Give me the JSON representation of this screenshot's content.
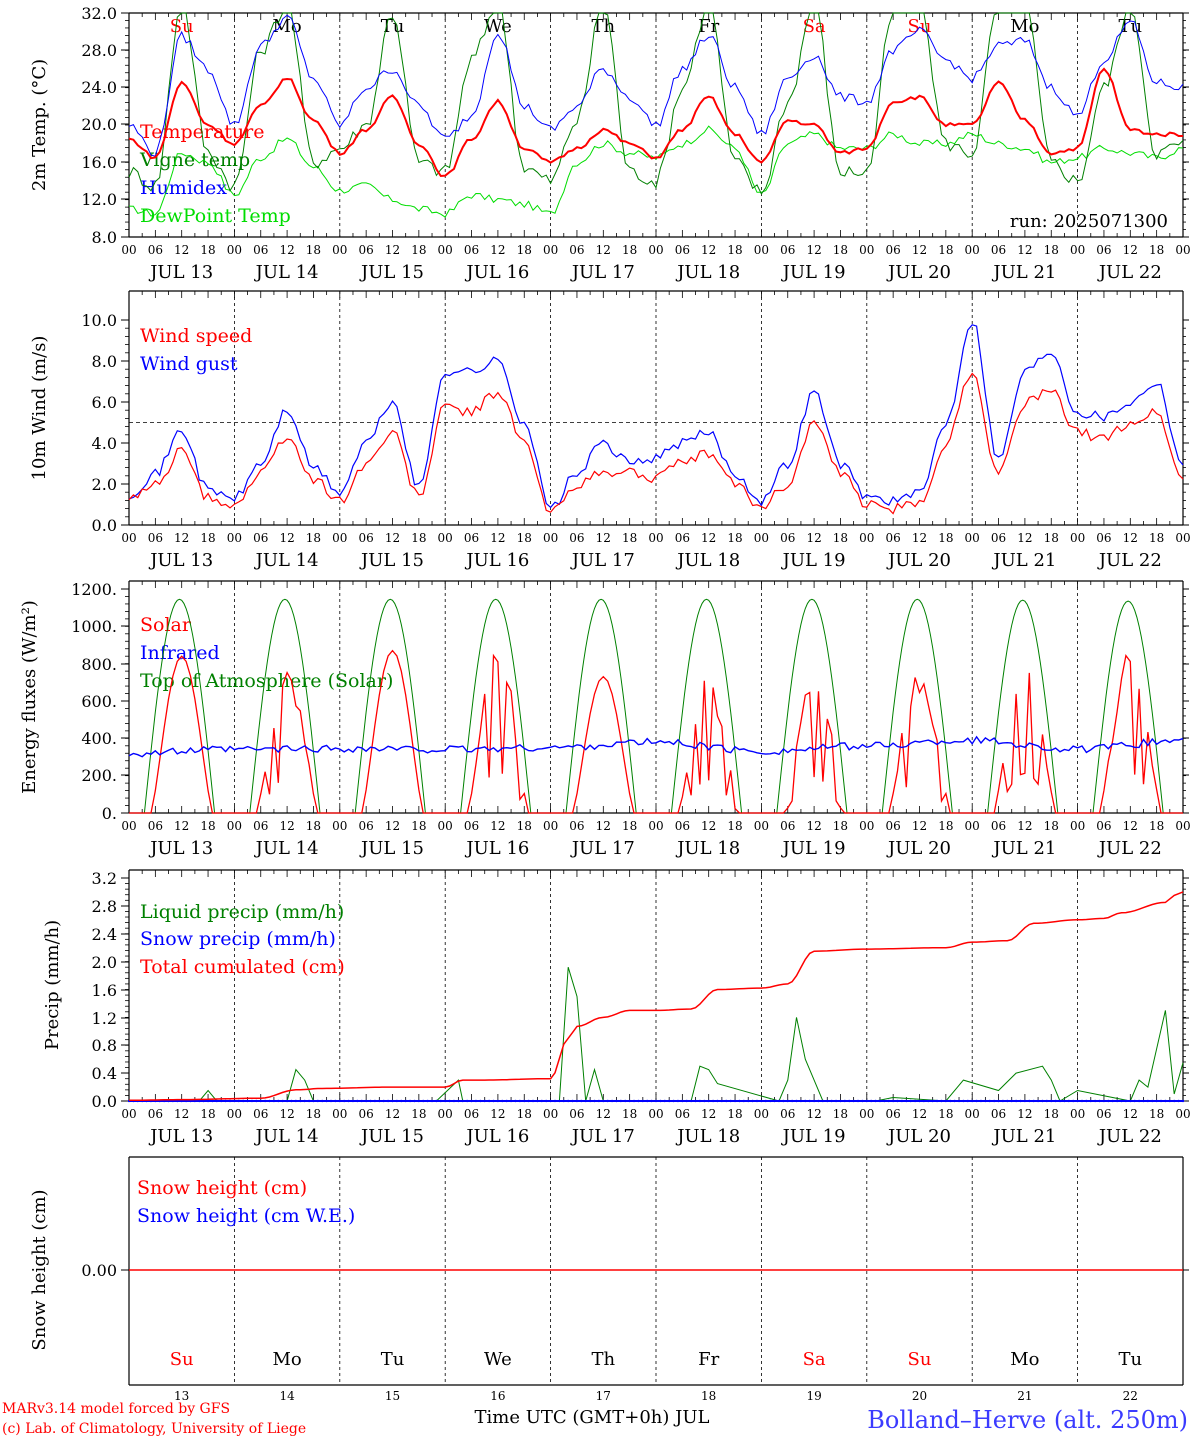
{
  "chart_data": [
    {
      "type": "line",
      "ylabel": "2m Temp. (°C)",
      "ylim": [
        8,
        32
      ],
      "yticks": [
        "32.0",
        "28.0",
        "24.0",
        "20.0",
        "16.0",
        "12.0",
        "8.0"
      ],
      "legend": [
        "Temperature",
        "Vigne temp",
        "Humidex",
        "DewPoint Temp"
      ],
      "annotation": "run: 2025071300",
      "series": [
        {
          "name": "Temperature",
          "color": "#ff0000",
          "x": [
            0,
            6,
            12,
            18,
            24,
            30,
            36,
            42,
            48,
            54,
            60,
            66,
            72,
            78,
            84,
            90,
            96,
            102,
            108,
            114,
            120,
            126,
            132,
            138,
            144,
            150,
            156,
            162,
            168,
            174,
            180,
            186,
            192,
            198,
            204,
            210,
            216,
            222,
            228,
            234,
            240
          ],
          "y": [
            18.5,
            16.5,
            24.5,
            20.0,
            18.0,
            22.0,
            25.0,
            20.5,
            17.0,
            19.5,
            23.0,
            18.0,
            14.5,
            18.5,
            22.5,
            17.5,
            16.0,
            17.5,
            19.5,
            18.0,
            16.5,
            19.5,
            23.0,
            19.0,
            16.0,
            20.5,
            20.0,
            17.0,
            17.5,
            22.5,
            23.0,
            20.0,
            20.0,
            24.5,
            20.5,
            17.0,
            17.5,
            26.0,
            19.5,
            19.0,
            19.0
          ]
        },
        {
          "name": "Vigne temp",
          "color": "#008000",
          "x": [
            0,
            6,
            12,
            18,
            24,
            30,
            36,
            42,
            48,
            54,
            60,
            66,
            72,
            78,
            84,
            90,
            96,
            102,
            108,
            114,
            120,
            126,
            132,
            138,
            144,
            150,
            156,
            162,
            168,
            174,
            180,
            186,
            192,
            198,
            204,
            210,
            216,
            222,
            228,
            234,
            240
          ],
          "y": [
            15.0,
            13.5,
            33.0,
            17.0,
            13.5,
            28.0,
            33.0,
            16.0,
            17.5,
            20.0,
            32.0,
            16.0,
            15.0,
            27.0,
            33.0,
            15.5,
            14.0,
            20.5,
            33.0,
            15.0,
            14.0,
            24.0,
            33.0,
            16.0,
            12.8,
            22.5,
            33.0,
            15.0,
            15.0,
            32.0,
            33.0,
            18.0,
            17.0,
            33.0,
            33.0,
            16.0,
            14.0,
            24.0,
            33.0,
            17.0,
            18.0
          ]
        },
        {
          "name": "Humidex",
          "color": "#0000ff",
          "x": [
            0,
            6,
            12,
            18,
            24,
            30,
            36,
            42,
            48,
            54,
            60,
            66,
            72,
            78,
            84,
            90,
            96,
            102,
            108,
            114,
            120,
            126,
            132,
            138,
            144,
            150,
            156,
            162,
            168,
            174,
            180,
            186,
            192,
            198,
            204,
            210,
            216,
            222,
            228,
            234,
            240
          ],
          "y": [
            20.0,
            17.0,
            29.5,
            26.0,
            20.0,
            28.5,
            31.5,
            25.0,
            20.0,
            24.0,
            26.0,
            22.0,
            18.5,
            21.0,
            30.0,
            22.0,
            19.5,
            22.0,
            26.0,
            23.0,
            20.0,
            26.0,
            29.5,
            24.0,
            19.0,
            25.0,
            27.5,
            23.0,
            22.5,
            28.0,
            30.0,
            27.0,
            25.0,
            28.5,
            29.0,
            24.0,
            21.0,
            27.0,
            31.0,
            24.5,
            24.0
          ]
        },
        {
          "name": "DewPoint Temp",
          "color": "#00dd00",
          "x": [
            0,
            6,
            12,
            18,
            24,
            30,
            36,
            42,
            48,
            54,
            60,
            66,
            72,
            78,
            84,
            90,
            96,
            102,
            108,
            114,
            120,
            126,
            132,
            138,
            144,
            150,
            156,
            162,
            168,
            174,
            180,
            186,
            192,
            198,
            204,
            210,
            216,
            222,
            228,
            234,
            240
          ],
          "y": [
            11.0,
            10.5,
            17.0,
            16.0,
            12.5,
            16.5,
            18.5,
            15.5,
            13.0,
            13.5,
            12.0,
            11.0,
            10.5,
            12.5,
            12.0,
            11.5,
            10.5,
            16.0,
            18.0,
            17.0,
            16.5,
            18.0,
            19.5,
            17.5,
            12.5,
            18.0,
            19.0,
            17.5,
            17.5,
            19.0,
            18.0,
            18.0,
            19.0,
            18.0,
            17.5,
            16.0,
            16.5,
            17.5,
            17.0,
            16.5,
            17.5
          ]
        }
      ]
    },
    {
      "type": "line",
      "ylabel": "10m Wind (m/s)",
      "ylim": [
        0,
        11
      ],
      "yticks": [
        "10.0",
        "8.0",
        "6.0",
        "4.0",
        "2.0",
        "0.0"
      ],
      "legend": [
        "Wind speed",
        "Wind gust"
      ],
      "reference_line": 5.0,
      "series": [
        {
          "name": "Wind speed",
          "color": "#ff0000",
          "x": [
            0,
            6,
            12,
            18,
            24,
            30,
            36,
            42,
            48,
            54,
            60,
            66,
            72,
            78,
            84,
            90,
            96,
            102,
            108,
            114,
            120,
            126,
            132,
            138,
            144,
            150,
            156,
            162,
            168,
            174,
            180,
            186,
            192,
            198,
            204,
            210,
            216,
            222,
            228,
            234,
            240
          ],
          "y": [
            1.2,
            2.0,
            3.6,
            1.3,
            1.0,
            2.5,
            4.3,
            2.2,
            1.2,
            3.0,
            4.5,
            1.4,
            5.8,
            5.5,
            6.5,
            4.0,
            0.6,
            2.0,
            2.5,
            2.6,
            2.3,
            3.0,
            3.5,
            2.0,
            0.9,
            2.0,
            5.0,
            2.5,
            1.0,
            0.8,
            1.0,
            4.0,
            7.5,
            2.5,
            6.0,
            6.5,
            4.5,
            4.2,
            5.0,
            5.5,
            2.2
          ]
        },
        {
          "name": "Wind gust",
          "color": "#0000ff",
          "x": [
            0,
            6,
            12,
            18,
            24,
            30,
            36,
            42,
            48,
            54,
            60,
            66,
            72,
            78,
            84,
            90,
            96,
            102,
            108,
            114,
            120,
            126,
            132,
            138,
            144,
            150,
            156,
            162,
            168,
            174,
            180,
            186,
            192,
            198,
            204,
            210,
            216,
            222,
            228,
            234,
            240
          ],
          "y": [
            1.5,
            2.5,
            4.6,
            1.7,
            1.3,
            3.0,
            5.6,
            2.8,
            1.6,
            4.0,
            6.0,
            1.8,
            7.5,
            7.5,
            8.0,
            5.0,
            0.8,
            2.5,
            4.0,
            3.0,
            3.3,
            4.0,
            4.5,
            2.5,
            1.2,
            3.0,
            6.5,
            3.0,
            1.4,
            1.2,
            1.5,
            5.0,
            10.0,
            3.2,
            7.5,
            8.5,
            5.5,
            5.3,
            6.0,
            7.0,
            3.0
          ]
        }
      ]
    },
    {
      "type": "line",
      "ylabel": "Energy fluxes (W/m²)",
      "ylim": [
        0,
        1200
      ],
      "yticks": [
        "1200.",
        "1000.",
        "800.",
        "600.",
        "400.",
        "200.",
        "0."
      ],
      "legend": [
        "Solar",
        "Infrared",
        "Top of Atmosphere (Solar)"
      ],
      "series": [
        {
          "name": "Solar",
          "color": "#ff0000",
          "daily_peak": [
            840,
            740,
            870,
            870,
            730,
            700,
            770,
            760,
            850,
            850
          ]
        },
        {
          "name": "Infrared",
          "color": "#0000ff",
          "x": [
            0,
            24,
            48,
            72,
            96,
            120,
            144,
            168,
            192,
            216,
            240
          ],
          "y": [
            320,
            340,
            345,
            340,
            350,
            380,
            330,
            360,
            390,
            340,
            390
          ]
        },
        {
          "name": "Top of Atmosphere (Solar)",
          "color": "#008000",
          "daily_peak": [
            1145,
            1145,
            1145,
            1145,
            1145,
            1145,
            1145,
            1145,
            1140,
            1135
          ]
        }
      ]
    },
    {
      "type": "line",
      "ylabel": "Precip (mm/h)",
      "ylim": [
        0,
        3.2
      ],
      "yticks": [
        "3.2",
        "2.8",
        "2.4",
        "2.0",
        "1.6",
        "1.2",
        "0.8",
        "0.4",
        "0.0"
      ],
      "legend": [
        "Liquid precip (mm/h)",
        "Snow precip (mm/h)",
        "Total cumulated (cm)"
      ],
      "series": [
        {
          "name": "Liquid precip (mm/h)",
          "color": "#008000",
          "x": [
            0,
            16,
            18,
            20,
            36,
            38,
            40,
            42,
            60,
            70,
            75,
            76,
            98,
            100,
            102,
            104,
            106,
            108,
            118,
            128,
            130,
            132,
            134,
            148,
            150,
            152,
            154,
            156,
            158,
            170,
            174,
            186,
            190,
            198,
            202,
            208,
            210,
            212,
            216,
            228,
            230,
            232,
            236,
            238,
            240
          ],
          "y": [
            0,
            0,
            0.15,
            0,
            0,
            0.45,
            0.3,
            0,
            0,
            0,
            0.3,
            0,
            0,
            1.92,
            1.5,
            0,
            0.45,
            0,
            0,
            0,
            0.5,
            0.45,
            0.25,
            0,
            0.3,
            1.2,
            0.6,
            0.3,
            0,
            0,
            0.05,
            0,
            0.3,
            0.15,
            0.4,
            0.5,
            0.3,
            0,
            0.15,
            0,
            0.3,
            0.2,
            1.3,
            0.1,
            0.55
          ]
        },
        {
          "name": "Snow precip (mm/h)",
          "color": "#0000ff",
          "x": [
            0,
            240
          ],
          "y": [
            0,
            0
          ]
        },
        {
          "name": "Total cumulated (cm)",
          "color": "#ff0000",
          "x": [
            0,
            12,
            30,
            38,
            44,
            60,
            72,
            76,
            80,
            96,
            100,
            102,
            108,
            114,
            120,
            128,
            134,
            144,
            150,
            156,
            168,
            186,
            192,
            200,
            206,
            216,
            222,
            226,
            236,
            238,
            240
          ],
          "y": [
            0.01,
            0.02,
            0.04,
            0.16,
            0.18,
            0.2,
            0.2,
            0.3,
            0.3,
            0.32,
            0.9,
            1.07,
            1.2,
            1.3,
            1.3,
            1.32,
            1.6,
            1.62,
            1.68,
            2.15,
            2.18,
            2.2,
            2.28,
            2.3,
            2.55,
            2.6,
            2.62,
            2.7,
            2.85,
            2.95,
            3.0
          ]
        }
      ]
    },
    {
      "type": "line",
      "ylabel": "Snow height (cm)",
      "yticks": [
        "0.00"
      ],
      "legend": [
        "Snow height (cm)",
        "Snow height (cm W.E.)"
      ],
      "series": [
        {
          "name": "Snow height (cm)",
          "color": "#ff0000",
          "x": [
            0,
            240
          ],
          "y": [
            0,
            0
          ]
        },
        {
          "name": "Snow height (cm W.E.)",
          "color": "#0000ff",
          "x": [
            0,
            240
          ],
          "y": [
            0,
            0
          ]
        }
      ]
    }
  ],
  "x_axis": {
    "hour_ticks": [
      "00",
      "06",
      "12",
      "18"
    ],
    "dates": [
      "JUL 13",
      "JUL 14",
      "JUL 15",
      "JUL 16",
      "JUL 17",
      "JUL 18",
      "JUL 19",
      "JUL 20",
      "JUL 21",
      "JUL 22"
    ],
    "days": [
      "Su",
      "Mo",
      "Tu",
      "We",
      "Th",
      "Fr",
      "Sa",
      "Su",
      "Mo",
      "Tu"
    ],
    "weekend_days": [
      0,
      6,
      7
    ],
    "day_numbers": [
      "13",
      "14",
      "15",
      "16",
      "17",
      "18",
      "19",
      "20",
      "21",
      "22"
    ],
    "xlabel": "Time UTC (GMT+0h) JUL"
  },
  "footer": {
    "model": "MARv3.14 model forced by GFS",
    "credit": "(c) Lab. of Climatology, University of Liege",
    "location": "Bolland–Herve (alt. 250m)"
  },
  "colors": {
    "red": "#ff0000",
    "blue": "#0000ff",
    "green": "#008000",
    "light_green": "#00dd00",
    "axis": "#000000"
  }
}
